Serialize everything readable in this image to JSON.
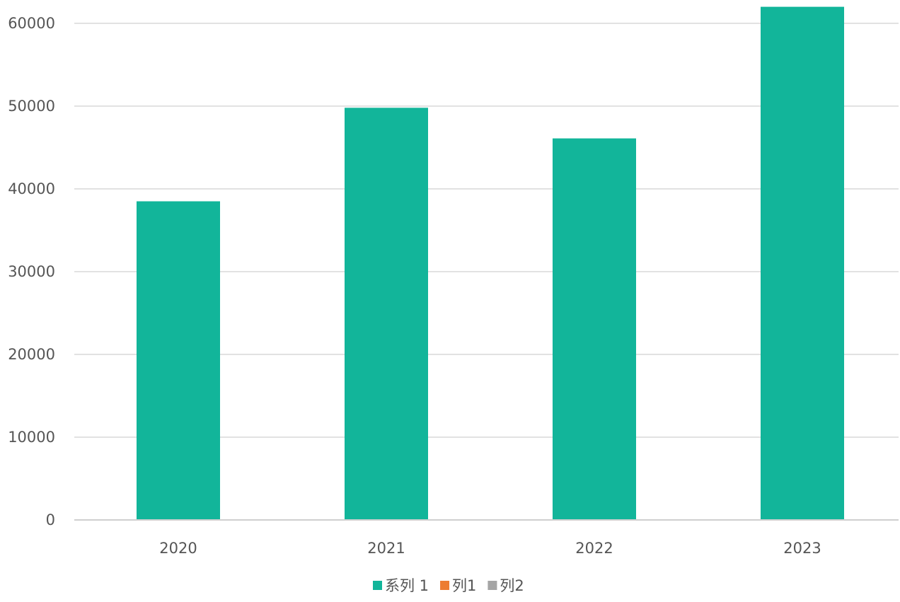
{
  "chart_data": {
    "type": "bar",
    "title": "",
    "xlabel": "",
    "ylabel": "",
    "categories": [
      "2020",
      "2021",
      "2022",
      "2023"
    ],
    "series": [
      {
        "name": "系列 1",
        "color": "#12b59a",
        "values": [
          38500,
          49800,
          46100,
          62000
        ]
      },
      {
        "name": "列1",
        "color": "#ed7d31",
        "values": [
          0,
          0,
          0,
          0
        ]
      },
      {
        "name": "列2",
        "color": "#a5a5a5",
        "values": [
          0,
          0,
          0,
          0
        ]
      }
    ],
    "ylim": [
      0,
      60000
    ],
    "yticks": [
      "0",
      "10000",
      "20000",
      "30000",
      "40000",
      "50000",
      "60000"
    ],
    "grid": true,
    "legend_position": "bottom"
  }
}
